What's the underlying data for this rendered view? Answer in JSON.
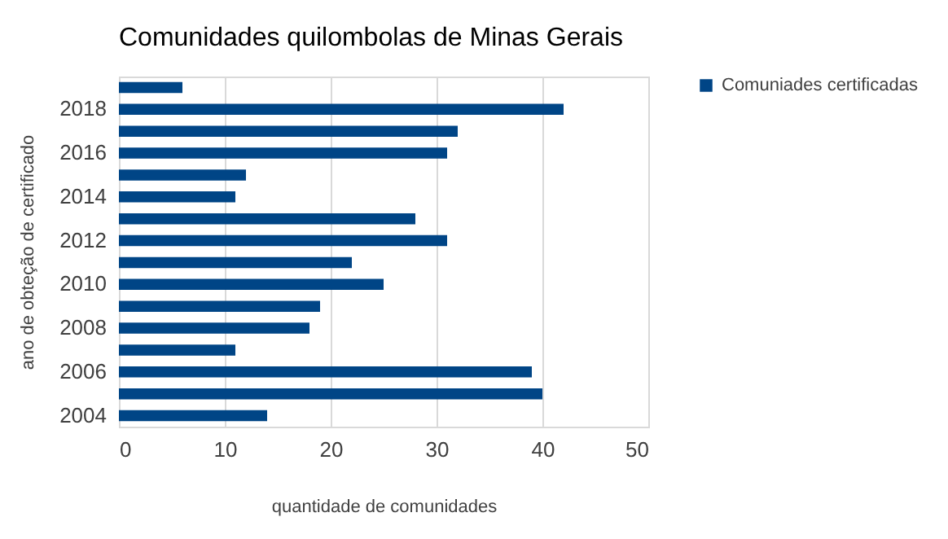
{
  "chart_data": {
    "type": "bar",
    "orientation": "horizontal",
    "title": "Comunidades quilombolas de Minas Gerais",
    "xlabel": "quantidade de comunidades",
    "ylabel": "ano de obteção de certificado",
    "categories": [
      null,
      "2018",
      null,
      "2016",
      null,
      "2014",
      null,
      "2012",
      null,
      "2010",
      null,
      "2008",
      null,
      "2006",
      null,
      "2004"
    ],
    "series": [
      {
        "name": "Comuniades certificadas",
        "color": "#004586",
        "values": [
          6,
          42,
          32,
          31,
          12,
          11,
          28,
          31,
          22,
          25,
          19,
          18,
          11,
          39,
          40,
          14
        ]
      }
    ],
    "xlim": [
      0,
      50
    ],
    "xticks": [
      0,
      10,
      20,
      30,
      40,
      50
    ],
    "grid": "x",
    "legend": "right"
  }
}
